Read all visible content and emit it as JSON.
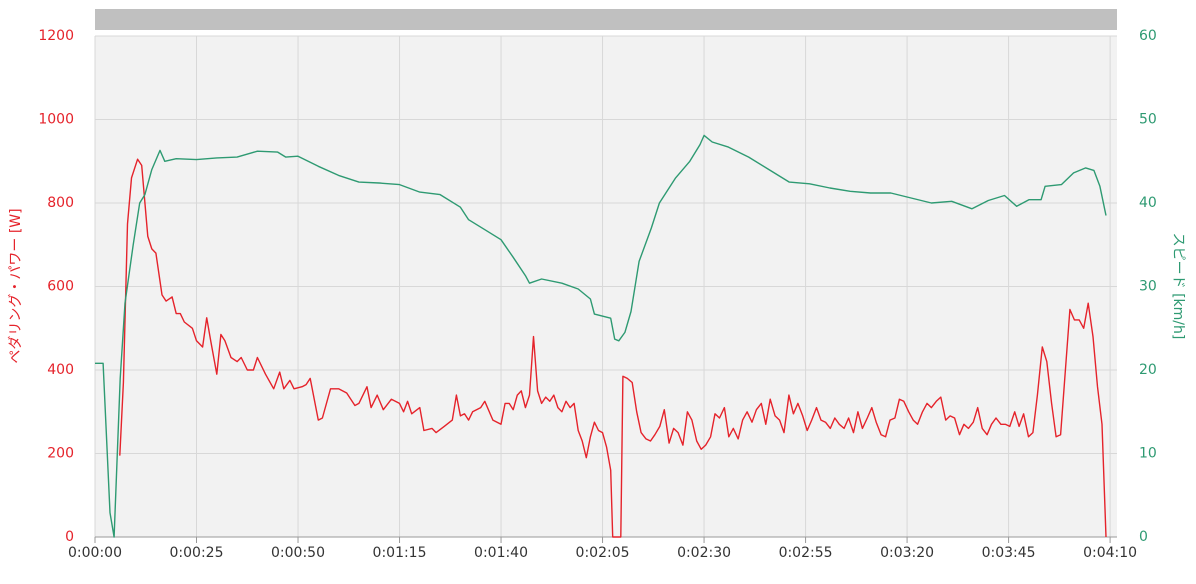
{
  "chart_data": {
    "type": "line",
    "xlim": [
      0,
      251.7
    ],
    "xticks": [
      {
        "value": 0,
        "label": "0:00:00"
      },
      {
        "value": 25,
        "label": "0:00:25"
      },
      {
        "value": 50,
        "label": "0:00:50"
      },
      {
        "value": 75,
        "label": "0:01:15"
      },
      {
        "value": 100,
        "label": "0:01:40"
      },
      {
        "value": 125,
        "label": "0:02:05"
      },
      {
        "value": 150,
        "label": "0:02:30"
      },
      {
        "value": 175,
        "label": "0:02:55"
      },
      {
        "value": 200,
        "label": "0:03:20"
      },
      {
        "value": 225,
        "label": "0:03:45"
      },
      {
        "value": 250,
        "label": "0:04:10"
      }
    ],
    "ylim": [
      0,
      1200
    ],
    "yticks": [
      0,
      200,
      400,
      600,
      800,
      1000,
      1200
    ],
    "y2lim": [
      0,
      60
    ],
    "y2ticks": [
      0,
      10,
      20,
      30,
      40,
      50,
      60
    ],
    "ylabel": "ペダリング・パワー [W]",
    "y2label": "スピード [km/h]",
    "grid": true,
    "series": [
      {
        "name": "ペダリング・パワー",
        "color": "#e5232b",
        "axis": "y",
        "x": [
          6.1,
          7,
          8,
          9,
          10.5,
          11.5,
          13,
          14,
          15,
          16.5,
          17.5,
          19,
          20,
          21,
          22,
          24,
          25,
          26.5,
          27.5,
          28.5,
          30,
          31,
          32,
          33.5,
          35,
          36,
          37.5,
          39,
          40,
          42,
          44,
          45.5,
          46.5,
          48,
          49,
          51,
          52,
          53,
          55,
          56,
          58,
          60,
          62,
          64,
          65,
          67,
          68,
          69.5,
          71,
          73,
          75,
          76,
          77,
          78,
          80,
          81,
          83,
          84,
          86,
          88,
          89,
          90,
          91,
          92,
          93,
          95,
          96,
          98,
          100,
          101,
          102,
          103,
          104,
          105,
          106,
          107,
          108,
          109,
          110,
          111,
          112,
          113,
          114,
          115,
          116,
          117,
          118,
          119,
          120,
          121,
          122,
          123,
          124,
          125,
          126,
          127,
          127.5,
          129.5,
          130,
          131.1,
          132.3,
          133.4,
          134.5,
          135.7,
          136.8,
          137.9,
          139.1,
          140.2,
          141.4,
          142.5,
          143.6,
          144.8,
          145.9,
          147.0,
          148.2,
          149.3,
          150.4,
          151.6,
          152.7,
          153.8,
          155.0,
          156.1,
          157.2,
          158.4,
          159.5,
          160.6,
          161.8,
          162.9,
          164.1,
          165.2,
          166.3,
          167.5,
          168.6,
          169.7,
          170.9,
          172.0,
          173.1,
          174.3,
          175.4,
          176.5,
          177.7,
          178.8,
          179.9,
          181.1,
          182.2,
          183.3,
          184.5,
          185.6,
          186.8,
          187.9,
          189.0,
          190.2,
          191.3,
          192.4,
          193.6,
          194.7,
          195.8,
          197.0,
          198.1,
          199.2,
          200.4,
          201.5,
          202.6,
          203.8,
          204.9,
          206.0,
          207.2,
          208.3,
          209.5,
          210.6,
          211.7,
          212.9,
          214.0,
          215.1,
          216.3,
          217.4,
          218.5,
          219.7,
          220.8,
          221.9,
          223.1,
          224.2,
          225.3,
          226.5,
          227.6,
          228.7,
          229.9,
          231.0,
          232.1,
          233.3,
          234.4,
          235.6,
          236.7,
          237.8,
          239.0,
          240.1,
          241.2,
          242.4,
          243.5,
          244.6,
          245.8,
          246.9,
          248.0,
          249.0
        ],
        "values": [
          195,
          370,
          750,
          860,
          905,
          890,
          720,
          690,
          680,
          580,
          565,
          575,
          535,
          535,
          515,
          500,
          470,
          455,
          525,
          470,
          390,
          485,
          470,
          430,
          420,
          430,
          400,
          400,
          430,
          390,
          355,
          395,
          355,
          375,
          355,
          360,
          365,
          380,
          280,
          285,
          355,
          355,
          345,
          315,
          320,
          360,
          310,
          340,
          305,
          330,
          320,
          300,
          325,
          295,
          310,
          255,
          260,
          250,
          265,
          280,
          340,
          290,
          295,
          280,
          300,
          310,
          325,
          280,
          270,
          320,
          320,
          305,
          340,
          350,
          310,
          340,
          480,
          350,
          320,
          335,
          325,
          340,
          310,
          300,
          325,
          310,
          320,
          255,
          230,
          190,
          240,
          275,
          255,
          250,
          215,
          160,
          0,
          0,
          385,
          380,
          370,
          300,
          250,
          235,
          230,
          245,
          265,
          305,
          225,
          260,
          250,
          220,
          300,
          280,
          230,
          210,
          220,
          240,
          295,
          285,
          310,
          240,
          260,
          235,
          280,
          300,
          275,
          305,
          320,
          270,
          330,
          290,
          280,
          250,
          340,
          295,
          320,
          290,
          255,
          280,
          310,
          280,
          275,
          260,
          285,
          270,
          260,
          285,
          250,
          300,
          260,
          285,
          310,
          275,
          245,
          240,
          280,
          285,
          330,
          325,
          300,
          280,
          270,
          300,
          320,
          310,
          325,
          335,
          280,
          290,
          285,
          245,
          270,
          260,
          275,
          310,
          260,
          245,
          270,
          285,
          270,
          270,
          265,
          300,
          265,
          295,
          240,
          250,
          340,
          455,
          420,
          320,
          240,
          245,
          400,
          545,
          520,
          520,
          500,
          560,
          480,
          360,
          270,
          0
        ]
      },
      {
        "name": "スピード",
        "color": "#2e9a72",
        "axis": "y2",
        "x": [
          0,
          2,
          3.7,
          4.7,
          6.2,
          7.4,
          9.4,
          11,
          12.3,
          14,
          16,
          17.2,
          20,
          25,
          30,
          35,
          40,
          45,
          47,
          50,
          55,
          60,
          65,
          70,
          75,
          80,
          85,
          90,
          92,
          97,
          100,
          103,
          106,
          107,
          110,
          115,
          119,
          122,
          123,
          127,
          128,
          129,
          130.5,
          132,
          134,
          137,
          139,
          143,
          146.5,
          149,
          150,
          152,
          156,
          161,
          166,
          171,
          176,
          181,
          186,
          191,
          196,
          201,
          206,
          211,
          216,
          220,
          224,
          227,
          230,
          233,
          234,
          238,
          241,
          244,
          246,
          247.5,
          249
        ],
        "values": [
          20.8,
          20.8,
          2.9,
          0,
          19,
          28,
          35,
          40,
          41,
          44,
          46.3,
          45,
          45.3,
          45.2,
          45.4,
          45.5,
          46.2,
          46.1,
          45.5,
          45.6,
          44.4,
          43.3,
          42.5,
          42.4,
          42.2,
          41.3,
          41,
          39.5,
          38,
          36.5,
          35.6,
          33.5,
          31.3,
          30.4,
          30.9,
          30.4,
          29.7,
          28.5,
          26.7,
          26.2,
          23.7,
          23.5,
          24.5,
          27,
          33,
          37,
          40,
          43,
          45,
          47,
          48.1,
          47.3,
          46.7,
          45.5,
          44,
          42.5,
          42.3,
          41.8,
          41.4,
          41.2,
          41.2,
          40.6,
          40,
          40.2,
          39.3,
          40.3,
          40.9,
          39.6,
          40.4,
          40.4,
          42,
          42.2,
          43.6,
          44.2,
          43.9,
          42,
          38.5
        ]
      }
    ]
  }
}
